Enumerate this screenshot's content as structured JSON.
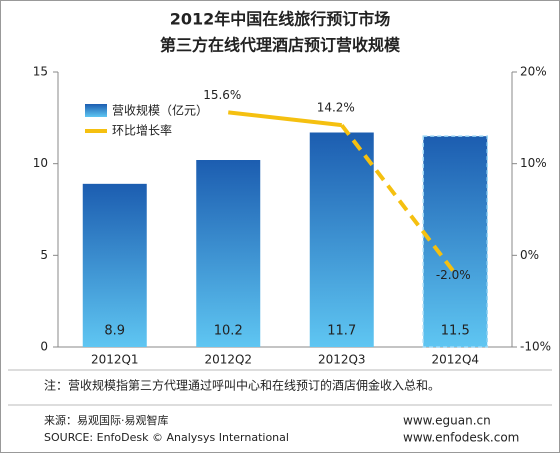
{
  "chart_data": {
    "type": "bar",
    "title": "2012年中国在线旅行预订市场",
    "subtitle": "第三方在线代理酒店预订营收规模",
    "categories": [
      "2012Q1",
      "2012Q2",
      "2012Q3",
      "2012Q4"
    ],
    "series": [
      {
        "name": "营收规模（亿元）",
        "color": "#1f6dc0",
        "values": [
          8.9,
          10.2,
          11.7,
          11.5
        ]
      },
      {
        "name": "环比增长率",
        "color": "#f5c010",
        "axis": "y2",
        "type": "line",
        "values": [
          null,
          15.6,
          14.2,
          -2.0
        ],
        "value_labels": [
          null,
          "15.6%",
          "14.2%",
          "-2.0%"
        ]
      }
    ],
    "ylim": [
      0,
      15
    ],
    "yticks": [
      0,
      5,
      10,
      15
    ],
    "y2lim": [
      -10,
      20
    ],
    "y2ticks": [
      {
        "value": -10,
        "label": "-10%"
      },
      {
        "value": 0,
        "label": "0%"
      },
      {
        "value": 10,
        "label": "10%"
      },
      {
        "value": 20,
        "label": "20%"
      }
    ],
    "grid": false,
    "legend": "upper left",
    "note": "注：营收规模指第三方代理通过呼叫中心和在线预订的酒店佣金收入总和。",
    "source": "来源：易观国际·易观智库",
    "source_en": "SOURCE: EnfoDesk © Analysys International",
    "urls": [
      "www.eguan.cn",
      "www.enfodesk.com"
    ]
  }
}
